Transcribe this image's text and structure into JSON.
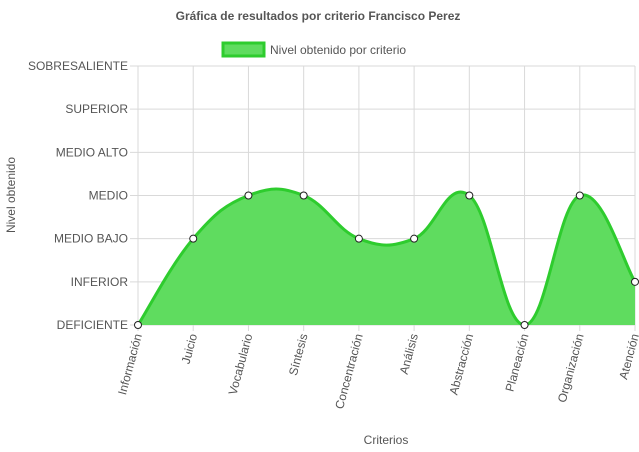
{
  "chart_data": {
    "type": "area",
    "title": "Gráfica de resultados por criterio Francisco Perez",
    "xlabel": "Criterios",
    "ylabel": "Nivel obtenido",
    "legend_position": "top",
    "grid": true,
    "y_levels": [
      "DEFICIENTE",
      "INFERIOR",
      "MEDIO BAJO",
      "MEDIO",
      "MEDIO ALTO",
      "SUPERIOR",
      "SOBRESALIENTE"
    ],
    "ylim": [
      0,
      6
    ],
    "categories": [
      "Información",
      "Juicio",
      "Vocabulario",
      "Síntesis",
      "Concentración",
      "Análisis",
      "Abstracción",
      "Planeación",
      "Organización",
      "Atención"
    ],
    "series": [
      {
        "name": "Nivel obtenido por criterio",
        "values": [
          0,
          2,
          3,
          3,
          2,
          2,
          3,
          0,
          3,
          1
        ],
        "fill_color": "#5fdc5f",
        "line_color": "#2ecc2e"
      }
    ]
  }
}
